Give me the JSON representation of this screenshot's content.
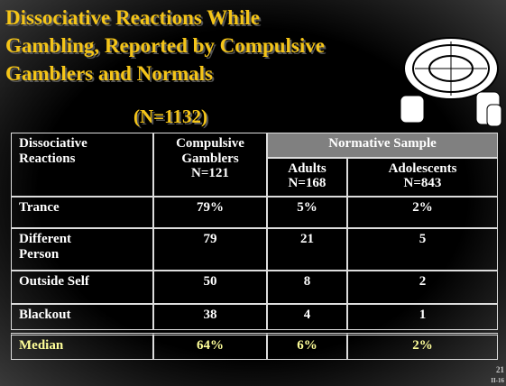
{
  "title": {
    "lines": [
      "Dissociative Reactions While",
      "Gambling, Reported by Compulsive",
      "Gamblers and Normals"
    ],
    "subtitle": "(N=1132)"
  },
  "table": {
    "header": {
      "row_label": [
        "Dissociative",
        "Reactions"
      ],
      "group": "Normative Sample",
      "columns": [
        {
          "name": [
            "Compulsive",
            "Gamblers"
          ],
          "n": "N=121"
        },
        {
          "name": [
            "Adults"
          ],
          "n": "N=168"
        },
        {
          "name": [
            "Adolescents"
          ],
          "n": "N=843"
        }
      ]
    },
    "rows": [
      [
        "Trance",
        "79%",
        "5%",
        "2%"
      ],
      [
        "Different Person",
        "79",
        "21",
        "5"
      ],
      [
        "Outside Self",
        "50",
        "8",
        "2"
      ],
      [
        "Blackout",
        "38",
        "4",
        "1"
      ]
    ],
    "summary": [
      "Median",
      "64%",
      "6%",
      "2%"
    ]
  },
  "footer": {
    "page": "21",
    "code": "II-16"
  }
}
